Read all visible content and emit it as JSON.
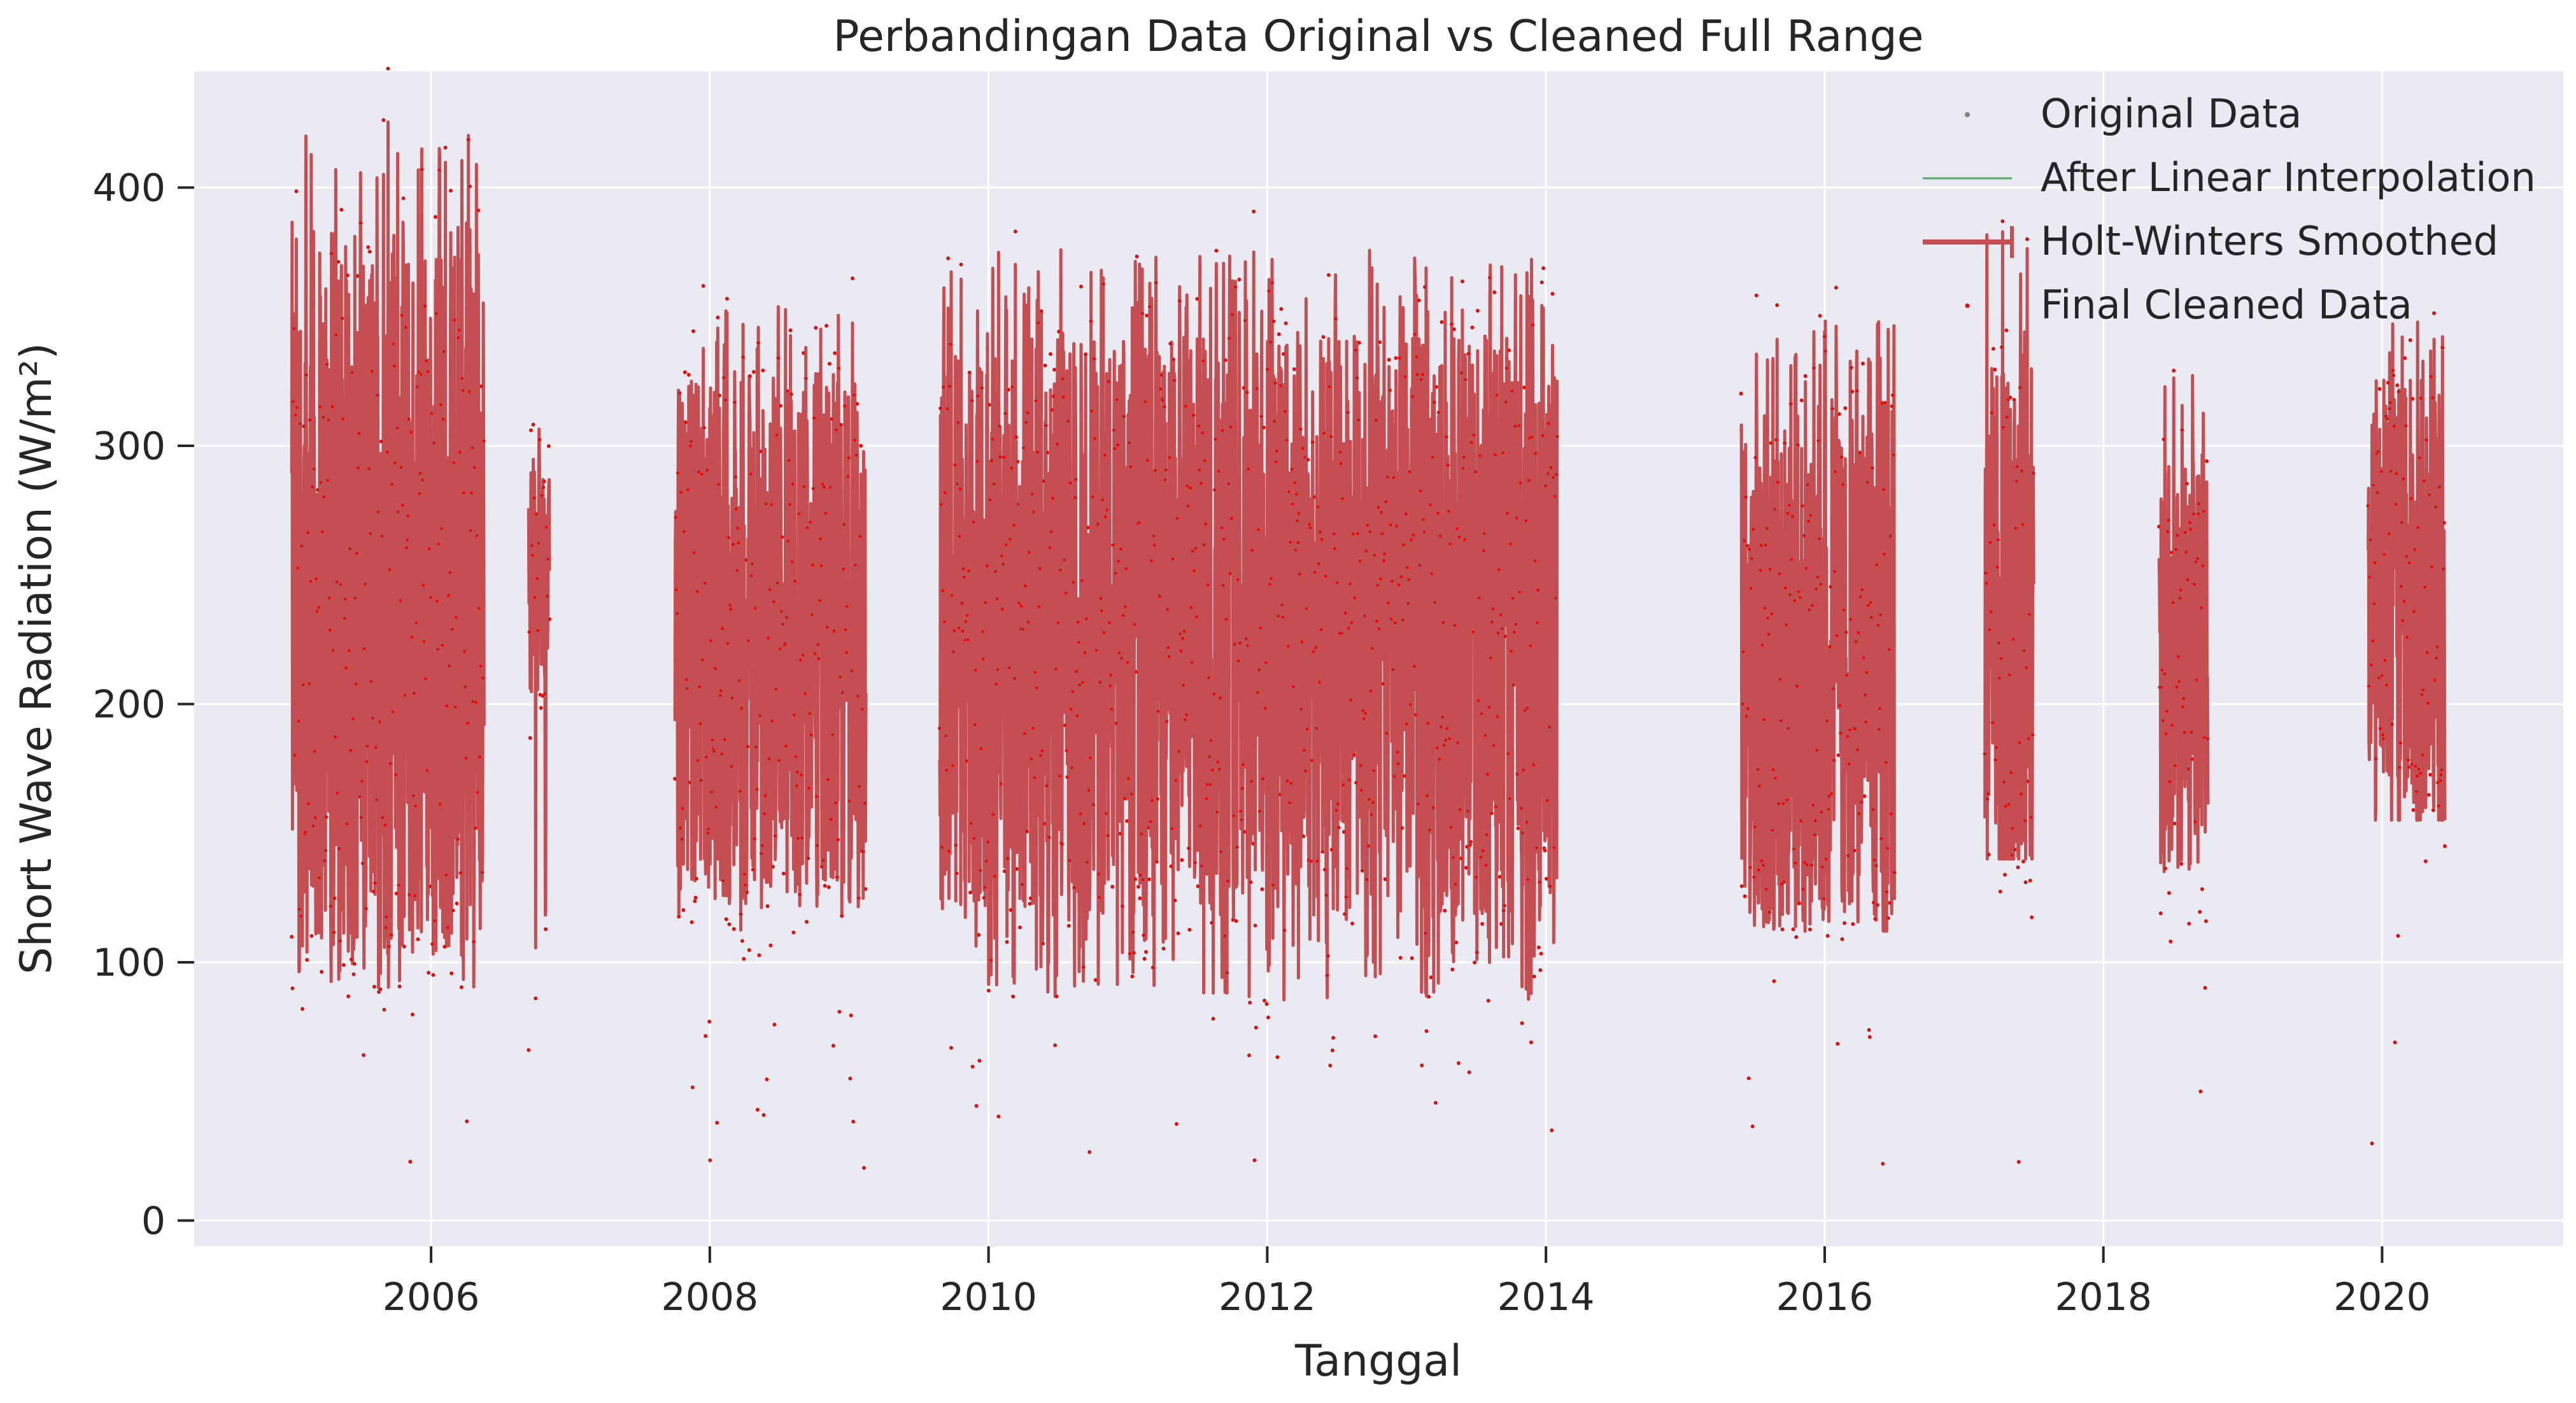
{
  "chart_data": {
    "type": "line",
    "title": "Perbandingan Data Original vs Cleaned Full Range",
    "xlabel": "Tanggal",
    "ylabel": "Short Wave Radiation (W/m²)",
    "xlim": [
      2004.3,
      2021.3
    ],
    "ylim": [
      -10,
      445
    ],
    "x_ticks": [
      2006,
      2008,
      2010,
      2012,
      2014,
      2016,
      2018,
      2020
    ],
    "x_tick_labels": [
      "2006",
      "2008",
      "2010",
      "2012",
      "2014",
      "2016",
      "2018",
      "2020"
    ],
    "y_ticks": [
      0,
      100,
      200,
      300,
      400
    ],
    "y_tick_labels": [
      "0",
      "100",
      "200",
      "300",
      "400"
    ],
    "grid": true,
    "legend_position": "top-right",
    "colors": {
      "background": "#eaeaf2",
      "grid": "#ffffff",
      "original": "#808080",
      "interpolation": "#55a868",
      "holt_winters": "#c44e52",
      "final_cleaned": "#ff0000"
    },
    "segments": [
      {
        "start": 2005.0,
        "end": 2006.38,
        "low": 90,
        "high": 428,
        "mean": 245
      },
      {
        "start": 2006.7,
        "end": 2006.85,
        "low": 100,
        "high": 308,
        "mean": 250
      },
      {
        "start": 2007.75,
        "end": 2009.12,
        "low": 110,
        "high": 358,
        "mean": 225
      },
      {
        "start": 2009.65,
        "end": 2014.08,
        "low": 85,
        "high": 376,
        "mean": 230
      },
      {
        "start": 2015.4,
        "end": 2016.5,
        "low": 112,
        "high": 349,
        "mean": 215
      },
      {
        "start": 2017.15,
        "end": 2017.5,
        "low": 140,
        "high": 387,
        "mean": 235
      },
      {
        "start": 2018.4,
        "end": 2018.75,
        "low": 130,
        "high": 328,
        "mean": 220
      },
      {
        "start": 2019.9,
        "end": 2020.45,
        "low": 155,
        "high": 351,
        "mean": 235
      }
    ],
    "series": [
      {
        "name": "Original Data",
        "style": "scatter",
        "color": "#808080"
      },
      {
        "name": "After Linear Interpolation",
        "style": "line",
        "color": "#55a868"
      },
      {
        "name": "Holt-Winters Smoothed",
        "style": "line",
        "color": "#c44e52"
      },
      {
        "name": "Final Cleaned Data",
        "style": "scatter",
        "color": "#ff0000"
      }
    ],
    "legend": [
      "Original Data",
      "After Linear Interpolation",
      "Holt-Winters Smoothed",
      "Final Cleaned Data"
    ]
  }
}
